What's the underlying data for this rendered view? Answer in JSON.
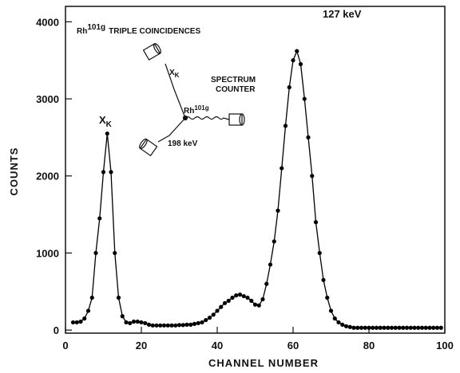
{
  "chart_data": {
    "type": "line",
    "title": [
      "Rh",
      "101g",
      "TRIPLE COINCIDENCES"
    ],
    "x_label": "CHANNEL NUMBER",
    "y_label": "COUNTS",
    "annotations": {
      "peak1": [
        "X",
        "K"
      ],
      "peak2": "127 keV"
    },
    "inset": {
      "xk": [
        "X",
        "K"
      ],
      "source": [
        "Rh",
        "101g"
      ],
      "counter": [
        "SPECTRUM",
        "COUNTER"
      ],
      "gamma": "198 keV"
    },
    "color": "#000000",
    "x": [
      2,
      3,
      4,
      5,
      6,
      7,
      8,
      9,
      10,
      11,
      12,
      13,
      14,
      15,
      16,
      17,
      18,
      19,
      20,
      21,
      22,
      23,
      24,
      25,
      26,
      27,
      28,
      29,
      30,
      31,
      32,
      33,
      34,
      35,
      36,
      37,
      38,
      39,
      40,
      41,
      42,
      43,
      44,
      45,
      46,
      47,
      48,
      49,
      50,
      51,
      52,
      53,
      54,
      55,
      56,
      57,
      58,
      59,
      60,
      61,
      62,
      63,
      64,
      65,
      66,
      67,
      68,
      69,
      70,
      71,
      72,
      73,
      74,
      75,
      76,
      77,
      78,
      79,
      80,
      81,
      82,
      83,
      84,
      85,
      86,
      87,
      88,
      89,
      90,
      91,
      92,
      93,
      94,
      95,
      96,
      97,
      98,
      99
    ],
    "values": [
      100,
      100,
      110,
      150,
      250,
      420,
      1000,
      1450,
      2050,
      2550,
      2050,
      1000,
      420,
      180,
      100,
      90,
      110,
      110,
      100,
      90,
      70,
      60,
      60,
      60,
      60,
      60,
      60,
      60,
      65,
      65,
      70,
      70,
      80,
      90,
      100,
      130,
      160,
      200,
      250,
      300,
      350,
      380,
      420,
      450,
      460,
      440,
      420,
      380,
      330,
      320,
      400,
      600,
      850,
      1150,
      1550,
      2100,
      2650,
      3150,
      3500,
      3620,
      3450,
      3000,
      2500,
      2000,
      1400,
      1000,
      650,
      420,
      250,
      150,
      100,
      70,
      50,
      40,
      30,
      30,
      30,
      30,
      30,
      30,
      30,
      30,
      30,
      30,
      30,
      30,
      30,
      30,
      30,
      30,
      30,
      30,
      30,
      30,
      30,
      30,
      30,
      30
    ],
    "xlim": [
      0,
      100
    ],
    "ylim": [
      -40,
      4200
    ],
    "xticks": [
      0,
      20,
      40,
      60,
      80,
      100
    ],
    "yticks": [
      0,
      1000,
      2000,
      3000,
      4000
    ]
  }
}
